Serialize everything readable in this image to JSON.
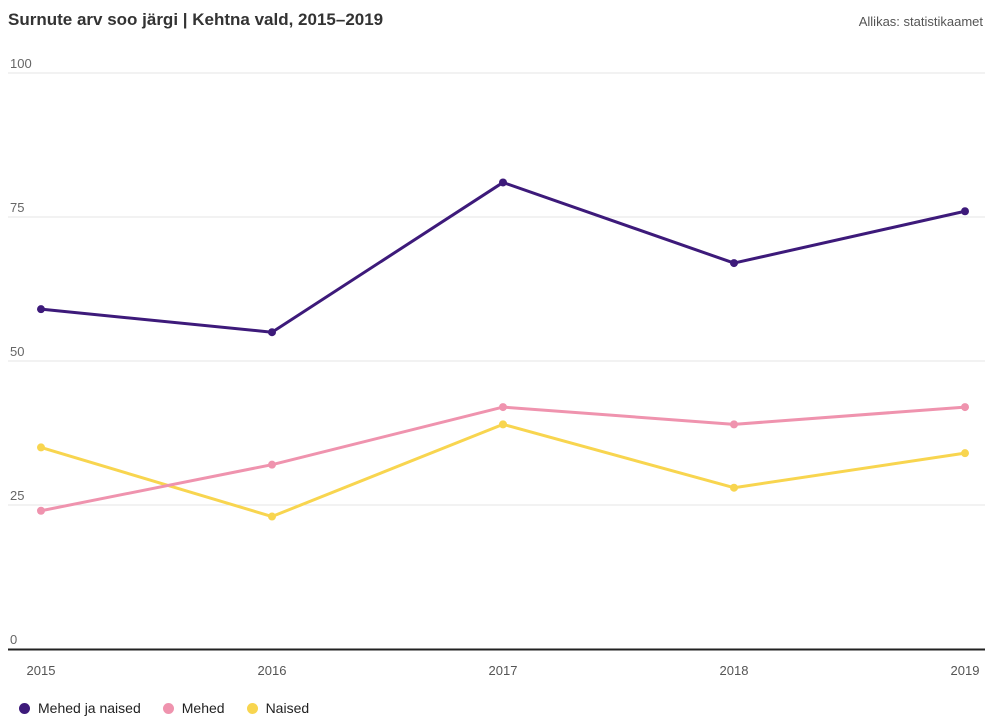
{
  "header": {
    "title": "Surnute arv soo järgi | Kehtna vald, 2015–2019",
    "source": "Allikas: statistikaamet"
  },
  "chart_data": {
    "type": "line",
    "x": [
      "2015",
      "2016",
      "2017",
      "2018",
      "2019"
    ],
    "ylim": [
      0,
      100
    ],
    "yticks": [
      "0",
      "25",
      "50",
      "75",
      "100"
    ],
    "grid": true,
    "legend_position": "bottom-left",
    "series": [
      {
        "name": "Mehed ja naised",
        "color": "#3d1a7a",
        "values": [
          59,
          55,
          81,
          67,
          76
        ]
      },
      {
        "name": "Mehed",
        "color": "#ef93ae",
        "values": [
          24,
          32,
          42,
          39,
          42
        ]
      },
      {
        "name": "Naised",
        "color": "#f8d54f",
        "values": [
          35,
          23,
          39,
          28,
          34
        ]
      }
    ]
  }
}
